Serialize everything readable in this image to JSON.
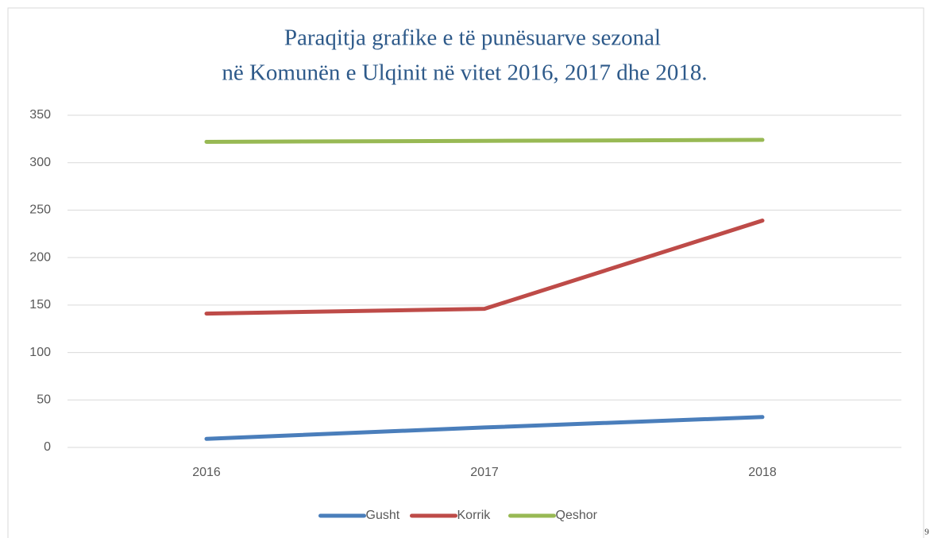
{
  "chart_data": {
    "type": "line",
    "title": [
      "Paraqitja grafike e të punësuarve sezonal",
      "në Komunën e Ulqinit në vitet 2016, 2017 dhe 2018."
    ],
    "categories": [
      "2016",
      "2017",
      "2018"
    ],
    "series": [
      {
        "name": "Gusht",
        "color": "#4a7ebb",
        "values": [
          9,
          21,
          32
        ]
      },
      {
        "name": "Korrik",
        "color": "#be4b48",
        "values": [
          141,
          146,
          239
        ]
      },
      {
        "name": "Qeshor",
        "color": "#98b954",
        "values": [
          322,
          323,
          324
        ]
      }
    ],
    "ylim": [
      0,
      350
    ],
    "yticks": [
      0,
      50,
      100,
      150,
      200,
      250,
      300,
      350
    ],
    "grid": true,
    "legend": "bottom"
  },
  "page_number": "9"
}
